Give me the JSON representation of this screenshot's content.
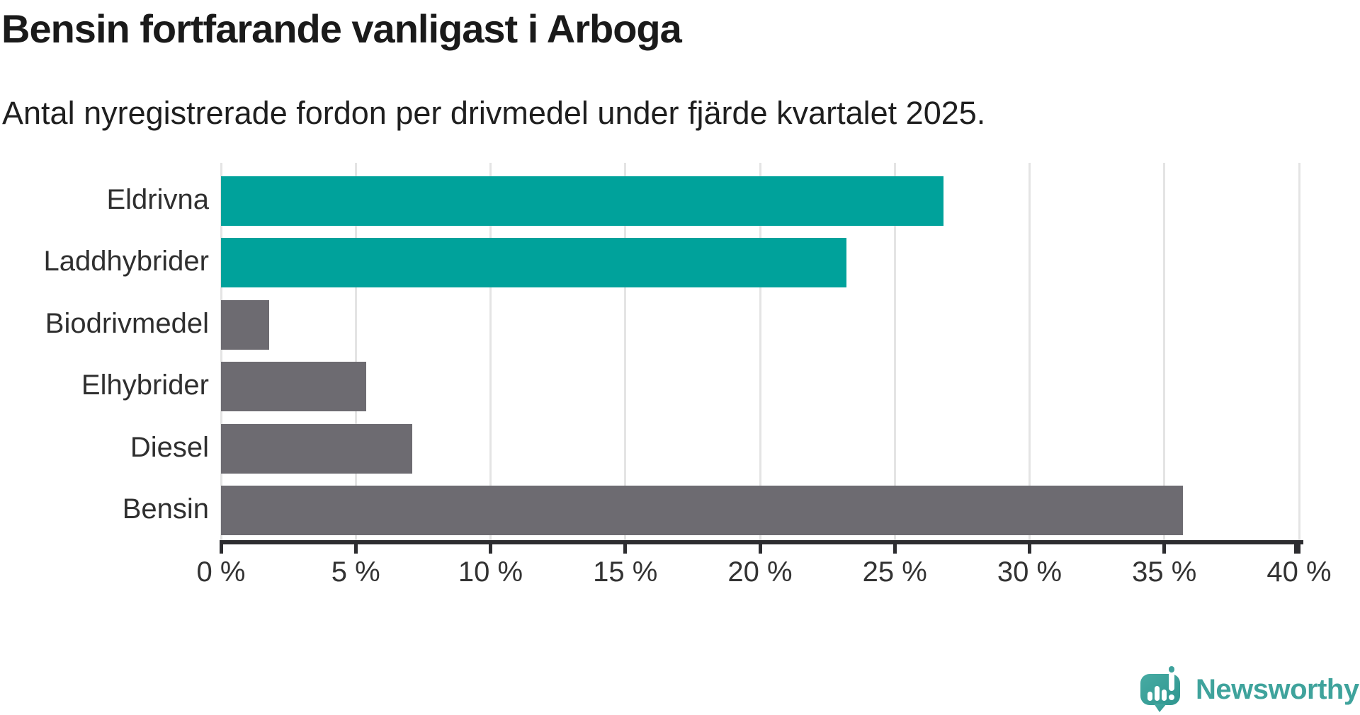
{
  "header": {
    "title": "Bensin fortfarande vanligast i Arboga",
    "subtitle": "Antal nyregistrerade fordon per drivmedel under fjärde kvartalet 2025."
  },
  "chart_data": {
    "type": "bar",
    "orientation": "horizontal",
    "title": "Bensin fortfarande vanligast i Arboga",
    "subtitle": "Antal nyregistrerade fordon per drivmedel under fjärde kvartalet 2025.",
    "categories": [
      "Eldrivna",
      "Laddhybrider",
      "Biodrivmedel",
      "Elhybrider",
      "Diesel",
      "Bensin"
    ],
    "values": [
      26.8,
      23.2,
      1.8,
      5.4,
      7.1,
      35.7
    ],
    "unit": "%",
    "bar_colors": [
      "#00a29b",
      "#00a29b",
      "#6d6b71",
      "#6d6b71",
      "#6d6b71",
      "#6d6b71"
    ],
    "highlight_color": "#00a29b",
    "default_color": "#6d6b71",
    "xlabel": "",
    "ylabel": "",
    "xlim": [
      0,
      40
    ],
    "x_ticks": [
      0,
      5,
      10,
      15,
      20,
      25,
      30,
      35,
      40
    ],
    "x_tick_labels": [
      "0 %",
      "5 %",
      "10 %",
      "15 %",
      "20 %",
      "25 %",
      "30 %",
      "35 %",
      "40 %"
    ],
    "grid": true,
    "gridline_color": "#e4e4e4",
    "axis_color": "#2d2d30",
    "legend": false
  },
  "footer": {
    "brand": "Newsworthy",
    "brand_color": "#3fa39c"
  }
}
